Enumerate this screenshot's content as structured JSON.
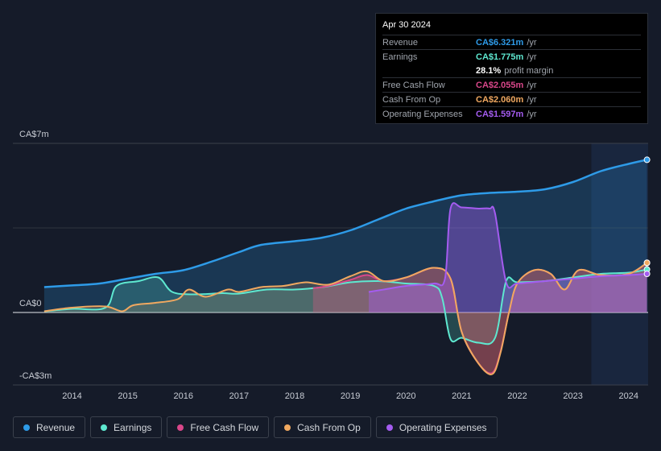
{
  "tooltip": {
    "date": "Apr 30 2024",
    "rows": [
      {
        "label": "Revenue",
        "value": "CA$6.321m",
        "unit": "/yr",
        "color": "#2e9be8"
      },
      {
        "label": "Earnings",
        "value": "CA$1.775m",
        "unit": "/yr",
        "color": "#5ee8d0"
      },
      {
        "label": "",
        "value": "28.1%",
        "unit": "profit margin",
        "color": "#ffffff"
      },
      {
        "label": "Free Cash Flow",
        "value": "CA$2.055m",
        "unit": "/yr",
        "color": "#d9478a"
      },
      {
        "label": "Cash From Op",
        "value": "CA$2.060m",
        "unit": "/yr",
        "color": "#f0a860"
      },
      {
        "label": "Operating Expenses",
        "value": "CA$1.597m",
        "unit": "/yr",
        "color": "#a45cf0"
      }
    ]
  },
  "legend": [
    {
      "label": "Revenue",
      "color": "#2e9be8"
    },
    {
      "label": "Earnings",
      "color": "#5ee8d0"
    },
    {
      "label": "Free Cash Flow",
      "color": "#d9478a"
    },
    {
      "label": "Cash From Op",
      "color": "#f0a860"
    },
    {
      "label": "Operating Expenses",
      "color": "#a45cf0"
    }
  ],
  "chart_data": {
    "type": "line",
    "title": "",
    "y_unit": "CA$m",
    "ylim": [
      -3,
      7
    ],
    "y_tick_labels": [
      {
        "value": 7,
        "label": "CA$7m"
      },
      {
        "value": 0,
        "label": "CA$0"
      },
      {
        "value": -3,
        "label": "-CA$3m"
      }
    ],
    "xlim": [
      2013.4,
      2024.35
    ],
    "x_ticks": [
      2014,
      2015,
      2016,
      2017,
      2018,
      2019,
      2020,
      2021,
      2022,
      2023,
      2024
    ],
    "forecast_start": 2023.33,
    "series": [
      {
        "name": "Revenue",
        "color": "#2e9be8",
        "x": [
          2013.5,
          2014.0,
          2014.5,
          2015.0,
          2015.5,
          2016.0,
          2016.5,
          2017.0,
          2017.4,
          2018.0,
          2018.5,
          2019.0,
          2019.5,
          2020.0,
          2020.5,
          2021.0,
          2021.5,
          2022.0,
          2022.5,
          2023.0,
          2023.5,
          2024.0,
          2024.33
        ],
        "y": [
          1.05,
          1.12,
          1.2,
          1.4,
          1.6,
          1.75,
          2.1,
          2.5,
          2.8,
          2.95,
          3.1,
          3.4,
          3.85,
          4.3,
          4.6,
          4.85,
          4.95,
          5.0,
          5.1,
          5.4,
          5.85,
          6.15,
          6.32
        ]
      },
      {
        "name": "Earnings",
        "color": "#5ee8d0",
        "x": [
          2013.5,
          2014.0,
          2014.6,
          2014.8,
          2015.2,
          2015.55,
          2015.8,
          2016.2,
          2016.7,
          2017.0,
          2017.5,
          2018.0,
          2018.5,
          2019.0,
          2019.5,
          2020.0,
          2020.5,
          2020.65,
          2020.8,
          2021.0,
          2021.3,
          2021.6,
          2021.8,
          2022.0,
          2022.5,
          2023.0,
          2023.5,
          2024.0,
          2024.33
        ],
        "y": [
          0.05,
          0.15,
          0.2,
          1.1,
          1.3,
          1.45,
          0.85,
          0.75,
          0.8,
          0.78,
          0.95,
          0.95,
          1.05,
          1.25,
          1.3,
          1.2,
          1.1,
          0.6,
          -1.1,
          -1.05,
          -1.25,
          -1.05,
          1.3,
          1.25,
          1.3,
          1.45,
          1.6,
          1.65,
          1.78
        ]
      },
      {
        "name": "Free Cash Flow",
        "color": "#d9478a",
        "x": [
          2018.33,
          2018.6,
          2019.0,
          2019.3,
          2019.6,
          2020.0,
          2020.5,
          2020.8,
          2021.0,
          2021.3,
          2021.55,
          2021.7,
          2021.85,
          2022.0,
          2022.3,
          2022.6,
          2022.85,
          2023.1,
          2023.5,
          2024.0,
          2024.33
        ],
        "y": [
          1.0,
          1.1,
          1.35,
          1.55,
          1.3,
          1.45,
          1.85,
          1.4,
          -0.8,
          -2.1,
          -2.5,
          -1.6,
          0.0,
          1.2,
          1.75,
          1.6,
          0.95,
          1.75,
          1.55,
          1.6,
          2.05
        ]
      },
      {
        "name": "Cash From Op",
        "color": "#f0a860",
        "x": [
          2013.5,
          2014.0,
          2014.6,
          2014.9,
          2015.1,
          2015.5,
          2015.9,
          2016.1,
          2016.4,
          2016.8,
          2017.0,
          2017.4,
          2017.8,
          2018.2,
          2018.6,
          2019.0,
          2019.3,
          2019.6,
          2020.0,
          2020.5,
          2020.8,
          2021.0,
          2021.3,
          2021.55,
          2021.7,
          2021.85,
          2022.0,
          2022.3,
          2022.6,
          2022.85,
          2023.1,
          2023.5,
          2024.0,
          2024.33
        ],
        "y": [
          0.05,
          0.2,
          0.25,
          0.05,
          0.3,
          0.4,
          0.55,
          0.95,
          0.65,
          0.95,
          0.85,
          1.05,
          1.1,
          1.25,
          1.15,
          1.5,
          1.7,
          1.3,
          1.45,
          1.85,
          1.4,
          -0.8,
          -2.1,
          -2.55,
          -1.65,
          0.0,
          1.2,
          1.75,
          1.6,
          0.95,
          1.75,
          1.55,
          1.6,
          2.06
        ]
      },
      {
        "name": "Operating Expenses",
        "color": "#a45cf0",
        "x": [
          2019.33,
          2019.6,
          2020.0,
          2020.5,
          2020.7,
          2020.8,
          2021.0,
          2021.3,
          2021.5,
          2021.6,
          2021.8,
          2022.0,
          2022.5,
          2023.0,
          2023.5,
          2024.0,
          2024.33
        ],
        "y": [
          0.85,
          0.95,
          1.1,
          1.2,
          1.4,
          4.3,
          4.35,
          4.3,
          4.3,
          4.1,
          1.25,
          1.2,
          1.3,
          1.4,
          1.5,
          1.55,
          1.6
        ]
      }
    ]
  }
}
